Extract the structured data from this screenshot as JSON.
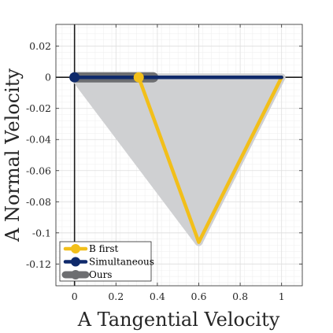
{
  "chart_data": {
    "type": "line",
    "xlabel": "A Tangential Velocity",
    "ylabel": "A Normal Velocity",
    "xlim": [
      -0.09,
      1.1
    ],
    "ylim": [
      -0.134,
      0.034
    ],
    "x_ticks": [
      0,
      0.2,
      0.4,
      0.6,
      0.8,
      1
    ],
    "x_tick_labels": [
      "0",
      "0.2",
      "0.4",
      "0.6",
      "0.8",
      "1"
    ],
    "y_ticks": [
      0.02,
      0,
      -0.02,
      -0.04,
      -0.06,
      -0.08,
      -0.1,
      -0.12
    ],
    "y_tick_labels": [
      "0.02",
      "0",
      "-0.02",
      "-0.04",
      "-0.06",
      "-0.08",
      "-0.1",
      "-0.12"
    ],
    "grid": true,
    "minor_grid": true,
    "legend_position": "bottom-left",
    "feasible_region": {
      "x": [
        0,
        1,
        0.6
      ],
      "y": [
        0,
        0,
        -0.106
      ],
      "color": "#cfd0d2"
    },
    "series": [
      {
        "name": "B first",
        "color": "#f2bf1a",
        "x": [
          0.31,
          0.6,
          1,
          0
        ],
        "y": [
          0,
          -0.106,
          0,
          0
        ],
        "start_marker": [
          0.31,
          0
        ]
      },
      {
        "name": "Simultaneous",
        "color": "#0f2a6b",
        "x": [
          0,
          1
        ],
        "y": [
          0,
          0
        ],
        "start_marker": [
          0,
          0
        ]
      },
      {
        "name": "Ours",
        "color": "#6d6e71",
        "x": [
          0,
          0.38
        ],
        "y": [
          0,
          0
        ],
        "start_marker": [
          0,
          0
        ]
      }
    ]
  }
}
